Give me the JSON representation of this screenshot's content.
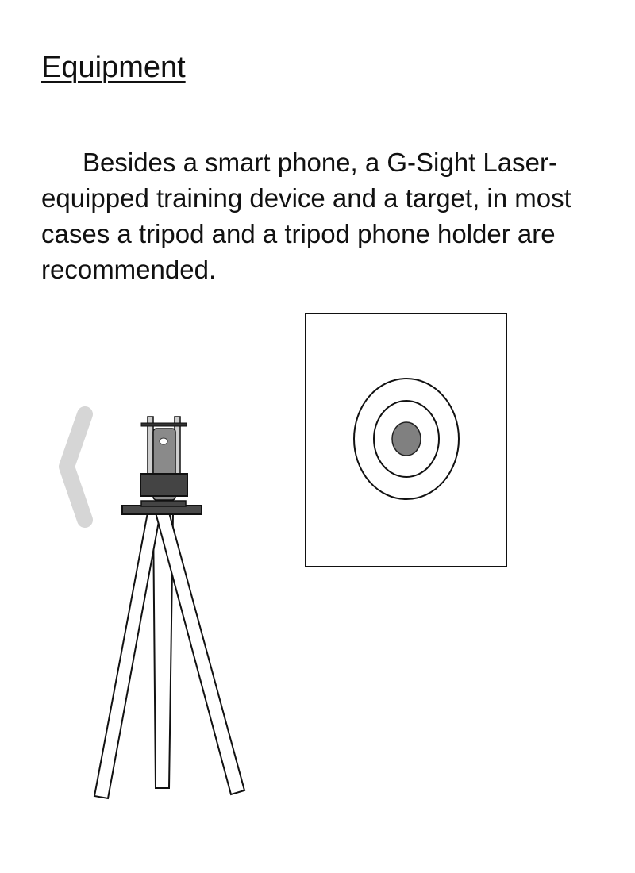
{
  "page": {
    "title": "Equipment",
    "paragraph": "Besides a smart phone, a G-Sight Laser-equipped training device and a target, in most cases a tripod and a tripod phone holder are recommended."
  },
  "illustration": {
    "items": [
      {
        "name": "back-chevron-icon",
        "color": "#d6d6d6"
      },
      {
        "name": "tripod-icon",
        "color": "#ffffff"
      },
      {
        "name": "phone-holder-icon",
        "color": "#444444"
      },
      {
        "name": "target-icon",
        "bullseye_color": "#808080"
      }
    ]
  }
}
